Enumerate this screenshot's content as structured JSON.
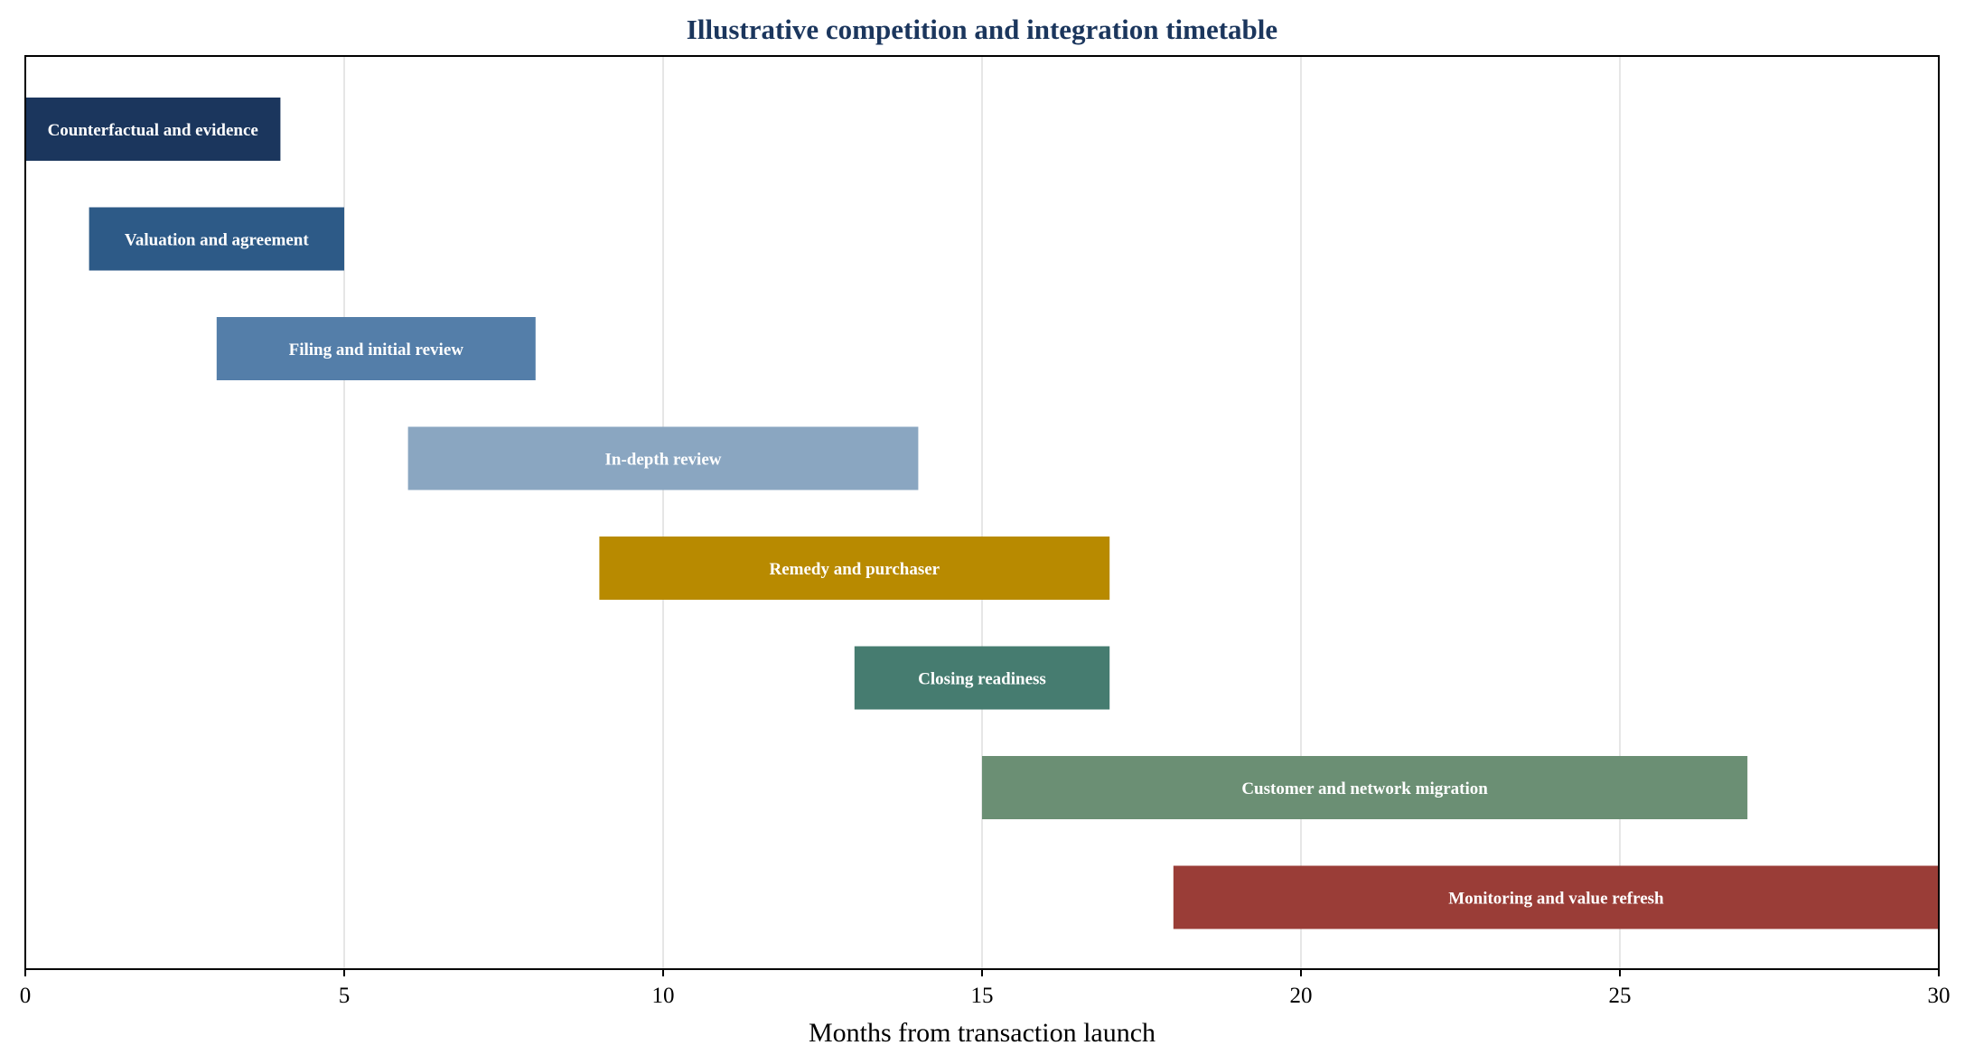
{
  "chart_data": {
    "type": "bar",
    "orientation": "horizontal-gantt",
    "title": "Illustrative competition and integration timetable",
    "xlabel": "Months from transaction launch",
    "ylabel": "",
    "xlim": [
      0,
      30
    ],
    "xticks": [
      "0",
      "5",
      "10",
      "15",
      "20",
      "25",
      "30"
    ],
    "grid": "vertical",
    "tasks": [
      {
        "label": "Counterfactual and evidence",
        "start": 0,
        "end": 4,
        "color": "#1b365d"
      },
      {
        "label": "Valuation and agreement",
        "start": 1,
        "end": 5,
        "color": "#2d5a87"
      },
      {
        "label": "Filing and initial review",
        "start": 3,
        "end": 8,
        "color": "#547ea9"
      },
      {
        "label": "In-depth review",
        "start": 6,
        "end": 14,
        "color": "#8aa6c1"
      },
      {
        "label": "Remedy and purchaser",
        "start": 9,
        "end": 17,
        "color": "#b88a00"
      },
      {
        "label": "Closing readiness",
        "start": 13,
        "end": 17,
        "color": "#467c70"
      },
      {
        "label": "Customer and network migration",
        "start": 15,
        "end": 27,
        "color": "#6b8f74"
      },
      {
        "label": "Monitoring and value refresh",
        "start": 18,
        "end": 30,
        "color": "#9a3d37"
      }
    ]
  }
}
